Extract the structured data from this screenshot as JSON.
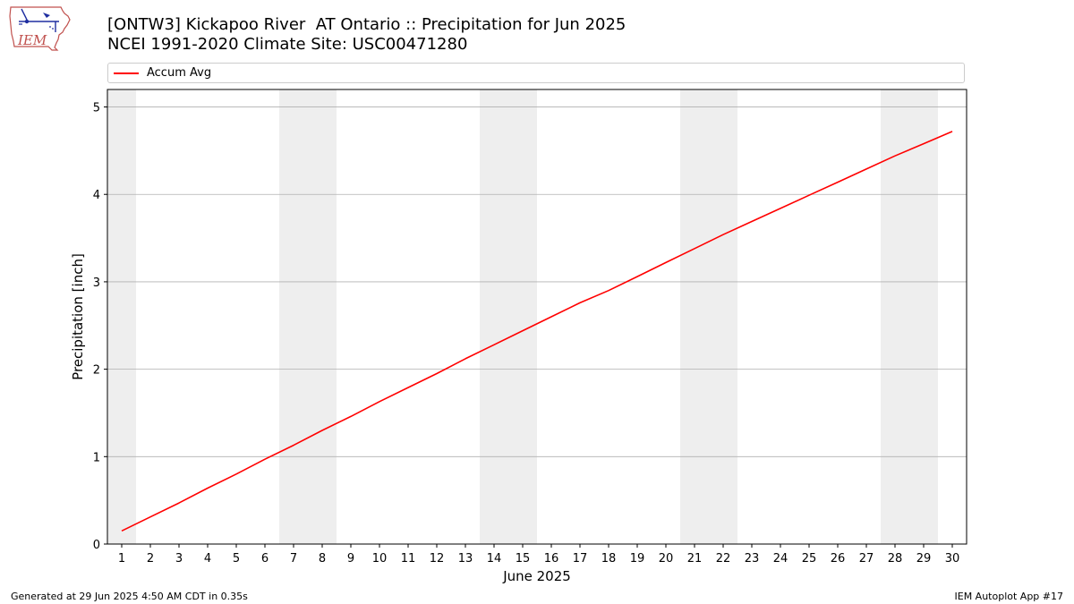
{
  "header": {
    "logo_text": "IEM",
    "title_line1": "[ONTW3] Kickapoo River  AT Ontario :: Precipitation for Jun 2025",
    "title_line2": "NCEI 1991-2020 Climate Site: USC00471280"
  },
  "footer": {
    "left": "Generated at 29 Jun 2025 4:50 AM CDT in 0.35s",
    "right": "IEM Autoplot App #17"
  },
  "colors": {
    "series": "#ff0000",
    "weekend_band": "#eeeeee",
    "grid": "#b0b0b0"
  },
  "chart_data": {
    "type": "line",
    "title": "[ONTW3] Kickapoo River  AT Ontario :: Precipitation for Jun 2025",
    "subtitle": "NCEI 1991-2020 Climate Site: USC00471280",
    "xlabel": "June 2025",
    "ylabel": "Precipitation [inch]",
    "xlim": [
      0.5,
      30.5
    ],
    "ylim": [
      0,
      5.2
    ],
    "x_ticks": [
      1,
      2,
      3,
      4,
      5,
      6,
      7,
      8,
      9,
      10,
      11,
      12,
      13,
      14,
      15,
      16,
      17,
      18,
      19,
      20,
      21,
      22,
      23,
      24,
      25,
      26,
      27,
      28,
      29,
      30
    ],
    "y_ticks": [
      0,
      1,
      2,
      3,
      4,
      5
    ],
    "grid": "horizontal",
    "legend_position": "top",
    "weekend_days": [
      1,
      7,
      8,
      14,
      15,
      21,
      22,
      28,
      29
    ],
    "series": [
      {
        "name": "Accum Avg",
        "color": "#ff0000",
        "x": [
          1,
          2,
          3,
          4,
          5,
          6,
          7,
          8,
          9,
          10,
          11,
          12,
          13,
          14,
          15,
          16,
          17,
          18,
          19,
          20,
          21,
          22,
          23,
          24,
          25,
          26,
          27,
          28,
          29,
          30
        ],
        "y": [
          0.15,
          0.31,
          0.47,
          0.64,
          0.8,
          0.97,
          1.13,
          1.3,
          1.46,
          1.63,
          1.79,
          1.95,
          2.12,
          2.28,
          2.44,
          2.6,
          2.76,
          2.9,
          3.06,
          3.22,
          3.38,
          3.54,
          3.69,
          3.84,
          3.99,
          4.14,
          4.29,
          4.44,
          4.58,
          4.72
        ]
      }
    ]
  }
}
